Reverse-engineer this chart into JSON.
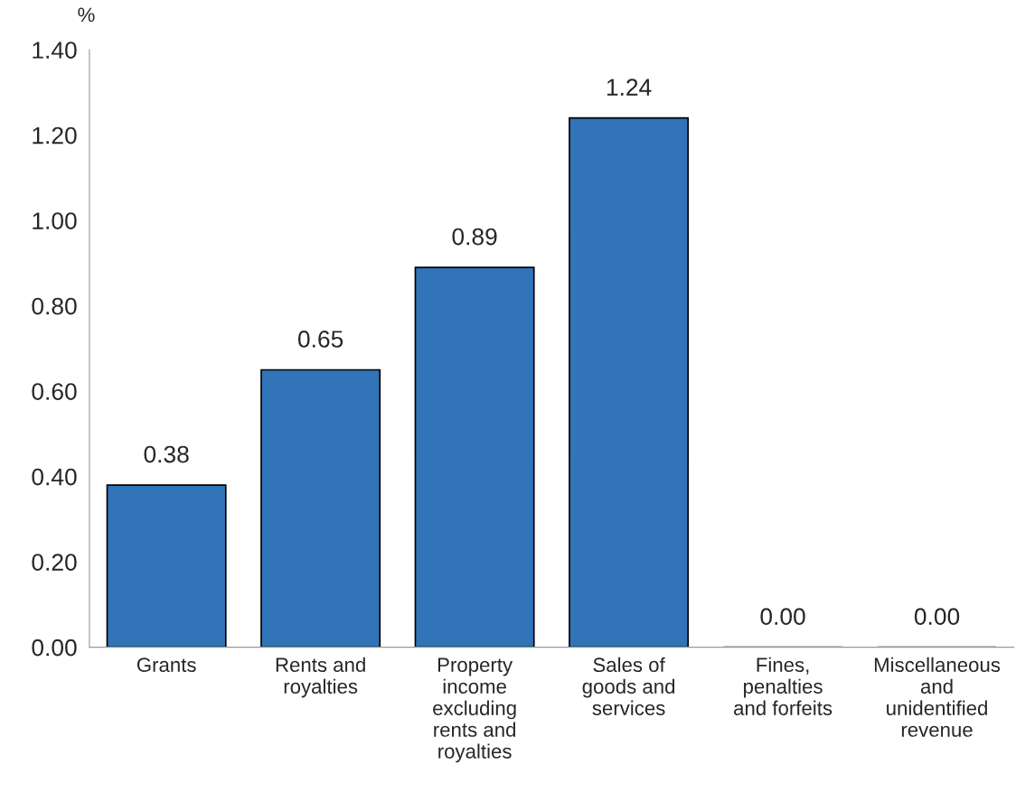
{
  "chart_data": {
    "type": "bar",
    "ylabel": "%",
    "categories": [
      "Grants",
      "Rents and\nroyalties",
      "Property\nincome\nexcluding\nrents and\nroyalties",
      "Sales of\ngoods and\nservices",
      "Fines,\npenalties\nand forfeits",
      "Miscellaneous\nand\nunidentified\nrevenue"
    ],
    "values": [
      0.38,
      0.65,
      0.89,
      1.24,
      0.0,
      0.0
    ],
    "value_labels": [
      "0.38",
      "0.65",
      "0.89",
      "1.24",
      "0.00",
      "0.00"
    ],
    "color": "#3174b8",
    "ylim": [
      0,
      1.4
    ],
    "yticks": [
      {
        "value": 0,
        "label": "0.00"
      },
      {
        "value": 0.2,
        "label": "0.20"
      },
      {
        "value": 0.4,
        "label": "0.40"
      },
      {
        "value": 0.6,
        "label": "0.60"
      },
      {
        "value": 0.8,
        "label": "0.80"
      },
      {
        "value": 1.0,
        "label": "1.00"
      },
      {
        "value": 1.2,
        "label": "1.20"
      },
      {
        "value": 1.4,
        "label": "1.40"
      }
    ],
    "grid": false
  }
}
